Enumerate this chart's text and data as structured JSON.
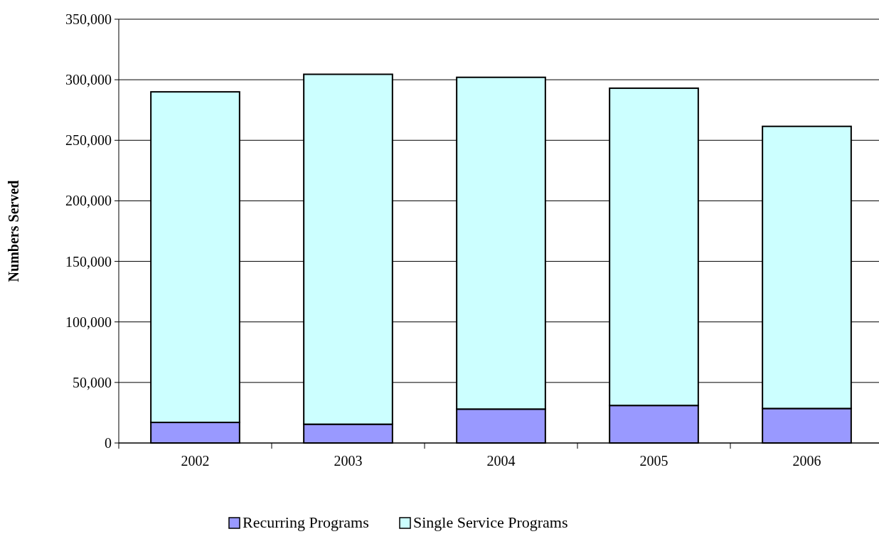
{
  "chart_data": {
    "type": "bar",
    "stacked": true,
    "ylabel": "Numbers Served",
    "categories": [
      "2002",
      "2003",
      "2004",
      "2005",
      "2006"
    ],
    "series": [
      {
        "name": "Recurring Programs",
        "color": "#9999ff",
        "values": [
          17000,
          15500,
          28000,
          31000,
          28500
        ]
      },
      {
        "name": "Single Service Programs",
        "color": "#ccffff",
        "values": [
          273000,
          289000,
          274000,
          262000,
          233000
        ]
      }
    ],
    "ylim": [
      0,
      350000
    ],
    "yticks": [
      {
        "value": 0,
        "label": "0"
      },
      {
        "value": 50000,
        "label": "50,000"
      },
      {
        "value": 100000,
        "label": "100,000"
      },
      {
        "value": 150000,
        "label": "150,000"
      },
      {
        "value": 200000,
        "label": "200,000"
      },
      {
        "value": 250000,
        "label": "250,000"
      },
      {
        "value": 300000,
        "label": "300,000"
      },
      {
        "value": 350000,
        "label": "350,000"
      }
    ],
    "grid": "y",
    "legend": "bottom"
  }
}
